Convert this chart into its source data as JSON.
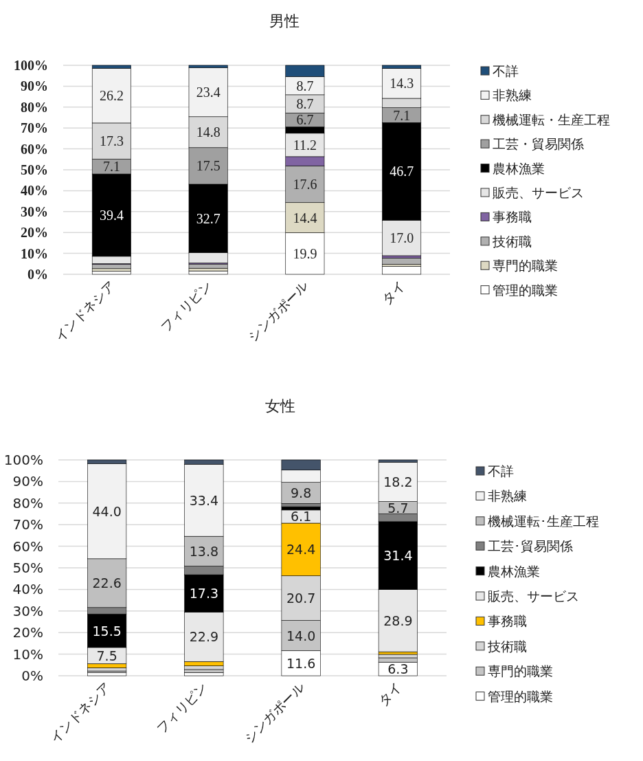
{
  "chart_data": [
    {
      "type": "bar",
      "title": "男性",
      "stacked": true,
      "grid": "y",
      "legend": "right",
      "categories": [
        "インドネシア",
        "フィリピン",
        "シンガポール",
        "タイ"
      ],
      "ylim": [
        0,
        100
      ],
      "yticks": [
        {
          "value": 0,
          "label": "0%"
        },
        {
          "value": 10,
          "label": "10%"
        },
        {
          "value": 20,
          "label": "20%"
        },
        {
          "value": 30,
          "label": "30%"
        },
        {
          "value": 40,
          "label": "40%"
        },
        {
          "value": 50,
          "label": "50%"
        },
        {
          "value": 60,
          "label": "60%"
        },
        {
          "value": 70,
          "label": "70%"
        },
        {
          "value": 80,
          "label": "80%"
        },
        {
          "value": 90,
          "label": "90%"
        },
        {
          "value": 100,
          "label": "100%"
        }
      ],
      "series": [
        {
          "name": "管理的職業",
          "color": "#ffffff",
          "values": [
            1.4,
            1.6,
            19.9,
            3.8
          ],
          "value_labels": [
            null,
            null,
            "19.9",
            null
          ]
        },
        {
          "name": "専門的職業",
          "color": "#ddd9c3",
          "values": [
            1.3,
            1.3,
            14.4,
            1.0
          ],
          "value_labels": [
            null,
            null,
            "14.4",
            null
          ]
        },
        {
          "name": "技術職",
          "color": "#b0b0b0",
          "values": [
            2.0,
            2.0,
            17.6,
            3.0
          ],
          "value_labels": [
            null,
            null,
            "17.6",
            null
          ]
        },
        {
          "name": "事務職",
          "color": "#8064a2",
          "values": [
            0.4,
            0.5,
            4.4,
            1.1
          ],
          "value_labels": [
            null,
            null,
            null,
            null
          ]
        },
        {
          "name": "販売、サービス",
          "color": "#e6e6e6",
          "values": [
            3.5,
            5.0,
            11.2,
            17.0
          ],
          "value_labels": [
            null,
            null,
            "11.2",
            "17.0"
          ]
        },
        {
          "name": "農林漁業",
          "color": "#000000",
          "values": [
            39.4,
            32.7,
            3.0,
            46.7
          ],
          "value_labels": [
            "39.4",
            "32.7",
            null,
            "46.7"
          ]
        },
        {
          "name": "工芸・貿易関係",
          "color": "#a0a0a0",
          "values": [
            7.1,
            17.5,
            6.7,
            7.1
          ],
          "value_labels": [
            "7.1",
            "17.5",
            "6.7",
            "7.1"
          ]
        },
        {
          "name": "機械運転・生産工程",
          "color": "#d9d9d9",
          "values": [
            17.3,
            14.8,
            8.7,
            4.5
          ],
          "value_labels": [
            "17.3",
            "14.8",
            "8.7",
            null
          ]
        },
        {
          "name": "非熟練",
          "color": "#f2f2f2",
          "values": [
            26.2,
            23.4,
            8.7,
            14.3
          ],
          "value_labels": [
            "26.2",
            "23.4",
            "8.7",
            "14.3"
          ]
        },
        {
          "name": "不詳",
          "color": "#1f4e79",
          "values": [
            1.4,
            1.2,
            5.4,
            1.5
          ],
          "value_labels": [
            null,
            null,
            null,
            null
          ]
        }
      ]
    },
    {
      "type": "bar",
      "title": "女性",
      "stacked": true,
      "grid": "y",
      "legend": "right",
      "categories": [
        "インドネシア",
        "フィリピン",
        "シンガポール",
        "タイ"
      ],
      "ylim": [
        0,
        100
      ],
      "yticks": [
        {
          "value": 0,
          "label": "0%"
        },
        {
          "value": 10,
          "label": "10%"
        },
        {
          "value": 20,
          "label": "20%"
        },
        {
          "value": 30,
          "label": "30%"
        },
        {
          "value": 40,
          "label": "40%"
        },
        {
          "value": 50,
          "label": "50%"
        },
        {
          "value": 60,
          "label": "60%"
        },
        {
          "value": 70,
          "label": "70%"
        },
        {
          "value": 80,
          "label": "80%"
        },
        {
          "value": 90,
          "label": "90%"
        },
        {
          "value": 100,
          "label": "100%"
        }
      ],
      "series": [
        {
          "name": "管理的職業",
          "color": "#ffffff",
          "values": [
            1.4,
            1.5,
            11.6,
            6.3
          ],
          "value_labels": [
            null,
            null,
            "11.6",
            "6.3"
          ]
        },
        {
          "name": "専門的職業",
          "color": "#c4c4c4",
          "values": [
            0.8,
            1.4,
            14.0,
            2.0
          ],
          "value_labels": [
            null,
            null,
            "14.0",
            null
          ]
        },
        {
          "name": "技術職",
          "color": "#d6d6d6",
          "values": [
            1.5,
            1.7,
            20.7,
            1.6
          ],
          "value_labels": [
            null,
            null,
            "20.7",
            null
          ]
        },
        {
          "name": "事務職",
          "color": "#ffc000",
          "values": [
            1.9,
            2.0,
            24.4,
            1.2
          ],
          "value_labels": [
            null,
            null,
            "24.4",
            null
          ]
        },
        {
          "name": "販売、サービス",
          "color": "#e8e8e8",
          "values": [
            7.5,
            22.9,
            6.1,
            28.9
          ],
          "value_labels": [
            "7.5",
            "22.9",
            "6.1",
            "28.9"
          ]
        },
        {
          "name": "農林漁業",
          "color": "#000000",
          "values": [
            15.5,
            17.3,
            1.5,
            31.4
          ],
          "value_labels": [
            "15.5",
            "17.3",
            null,
            "31.4"
          ]
        },
        {
          "name": "工芸･貿易関係",
          "color": "#7f7f7f",
          "values": [
            3.0,
            4.0,
            1.5,
            3.6
          ],
          "value_labels": [
            null,
            null,
            null,
            null
          ]
        },
        {
          "name": "機械運転･生産工程",
          "color": "#bfbfbf",
          "values": [
            22.6,
            13.8,
            9.8,
            5.7
          ],
          "value_labels": [
            "22.6",
            "13.8",
            "9.8",
            "5.7"
          ]
        },
        {
          "name": "非熟練",
          "color": "#f2f2f2",
          "values": [
            44.0,
            33.4,
            5.7,
            18.2
          ],
          "value_labels": [
            "44.0",
            "33.4",
            null,
            "18.2"
          ]
        },
        {
          "name": "不詳",
          "color": "#44546a",
          "values": [
            1.8,
            2.0,
            4.7,
            1.1
          ],
          "value_labels": [
            null,
            null,
            null,
            null
          ]
        }
      ]
    }
  ]
}
